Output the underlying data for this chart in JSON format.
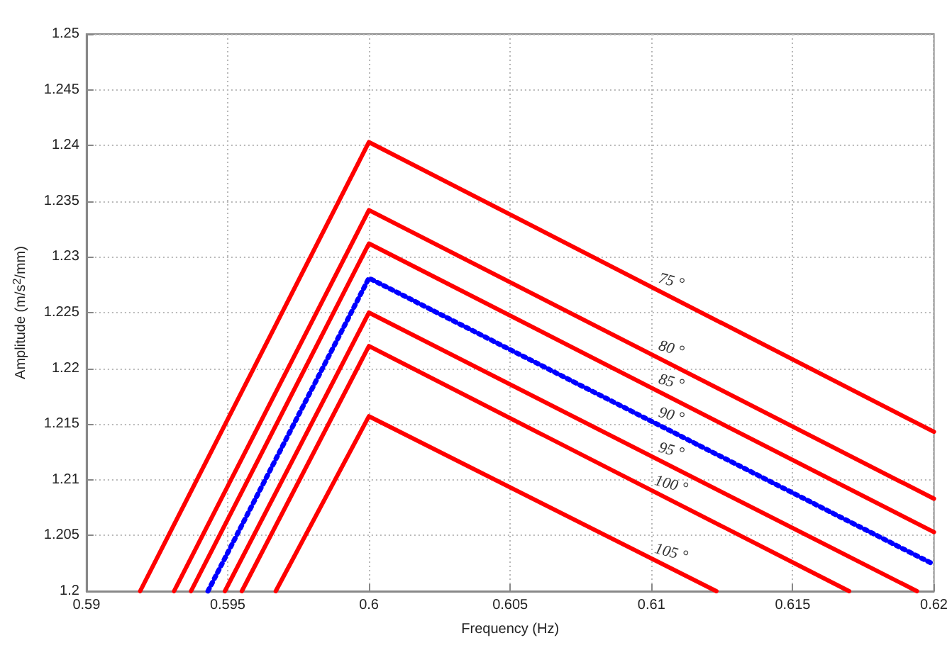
{
  "chart_data": {
    "type": "line",
    "xlabel": "Frequency (Hz)",
    "ylabel": "Amplitude (m/s$^{2}$/mm)",
    "xlim": [
      0.59,
      0.62
    ],
    "xticks": [
      0.59,
      0.595,
      0.6,
      0.605,
      0.61,
      0.615,
      0.62
    ],
    "ylim": [
      1.2,
      1.25
    ],
    "yticks": [
      1.2,
      1.205,
      1.21,
      1.215,
      1.22,
      1.225,
      1.23,
      1.235,
      1.24,
      1.245,
      1.25
    ],
    "grid": true,
    "marker": "none",
    "series": [
      {
        "name": "75 °",
        "color": "#ff0000",
        "line_style": "solid",
        "x": [
          0.5919,
          0.6,
          0.62
        ],
        "values": [
          1.2,
          1.2403,
          1.2143
        ]
      },
      {
        "name": "80 °",
        "color": "#ff0000",
        "line_style": "solid",
        "x": [
          0.5931,
          0.6,
          0.62
        ],
        "values": [
          1.2,
          1.2342,
          1.2083
        ]
      },
      {
        "name": "85 °",
        "color": "#ff0000",
        "line_style": "solid",
        "x": [
          0.5937,
          0.6,
          0.62
        ],
        "values": [
          1.2,
          1.2312,
          1.2053
        ]
      },
      {
        "name": "90 °",
        "color": "#0000ff",
        "line_style": "dotted",
        "x": [
          0.5943,
          0.6,
          0.62
        ],
        "values": [
          1.2,
          1.2281,
          1.2024
        ]
      },
      {
        "name": "95 °",
        "color": "#ff0000",
        "line_style": "solid",
        "x": [
          0.5949,
          0.6,
          0.6194
        ],
        "values": [
          1.2,
          1.225,
          1.2
        ]
      },
      {
        "name": "100 °",
        "color": "#ff0000",
        "line_style": "solid",
        "x": [
          0.5955,
          0.6,
          0.617
        ],
        "values": [
          1.2,
          1.222,
          1.2
        ]
      },
      {
        "name": "105 °",
        "color": "#ff0000",
        "line_style": "solid",
        "x": [
          0.5967,
          0.6,
          0.6123
        ],
        "values": [
          1.2,
          1.2157,
          1.2
        ]
      }
    ]
  }
}
